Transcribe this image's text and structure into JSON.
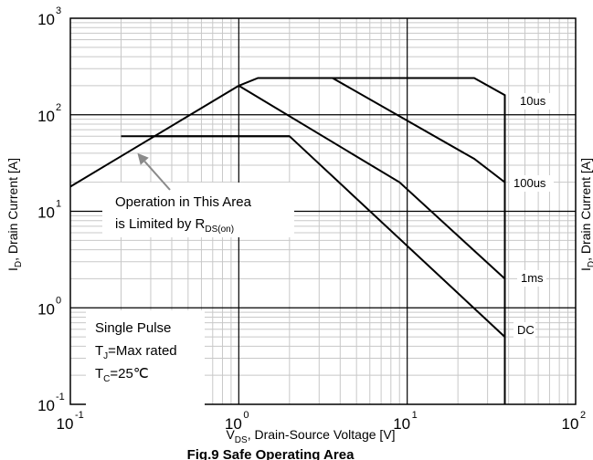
{
  "chart_data": {
    "type": "line",
    "xscale": "log",
    "yscale": "log",
    "xlim": [
      0.1,
      100
    ],
    "ylim": [
      0.1,
      1000
    ],
    "x_ticks": [
      {
        "base": "10",
        "exp": "-1"
      },
      {
        "base": "10",
        "exp": "0"
      },
      {
        "base": "10",
        "exp": "1"
      },
      {
        "base": "10",
        "exp": "2"
      }
    ],
    "y_ticks": [
      {
        "base": "10",
        "exp": "-1"
      },
      {
        "base": "10",
        "exp": "0"
      },
      {
        "base": "10",
        "exp": "1"
      },
      {
        "base": "10",
        "exp": "2"
      },
      {
        "base": "10",
        "exp": "3"
      }
    ],
    "grid": true,
    "xlabel": {
      "main": "V",
      "sub": "DS",
      "rest": ", Drain-Source Voltage [V]"
    },
    "ylabel": {
      "main": "I",
      "sub": "D",
      "rest": ", Drain Current [A]"
    },
    "right_ylabel": {
      "main": "I",
      "sub": "D",
      "rest": ", Drain Current [A]"
    },
    "caption": "Fig.9 Safe Operating Area",
    "rds_limit_line": [
      [
        0.1,
        18
      ],
      [
        1.0,
        200
      ]
    ],
    "series": [
      {
        "name": "10us",
        "points": [
          [
            1.0,
            200
          ],
          [
            1.3,
            240
          ],
          [
            25,
            240
          ],
          [
            38,
            160
          ],
          [
            38,
            0.1
          ]
        ]
      },
      {
        "name": "100us",
        "points": [
          [
            3.6,
            240
          ],
          [
            25,
            35
          ],
          [
            38,
            20
          ],
          [
            38,
            0.1
          ]
        ]
      },
      {
        "name": "1ms",
        "points": [
          [
            1.0,
            200
          ],
          [
            9,
            20
          ],
          [
            38,
            2
          ]
        ]
      },
      {
        "name": "DC",
        "points": [
          [
            0.3,
            60
          ],
          [
            2,
            60
          ],
          [
            38,
            0.5
          ]
        ]
      }
    ],
    "step_line": [
      [
        0.2,
        60
      ],
      [
        2,
        60
      ]
    ],
    "annotation": {
      "line1": "Operation in This Area",
      "line2_prefix": "is Limited by R",
      "line2_sub": "DS(on)",
      "arrow_to": [
        0.25,
        40
      ]
    },
    "conditions": {
      "line1": "Single Pulse",
      "line2_main": "T",
      "line2_sub": "J",
      "line2_rest": "=Max rated",
      "line3_main": "T",
      "line3_sub": "C",
      "line3_rest": "=25℃"
    }
  }
}
